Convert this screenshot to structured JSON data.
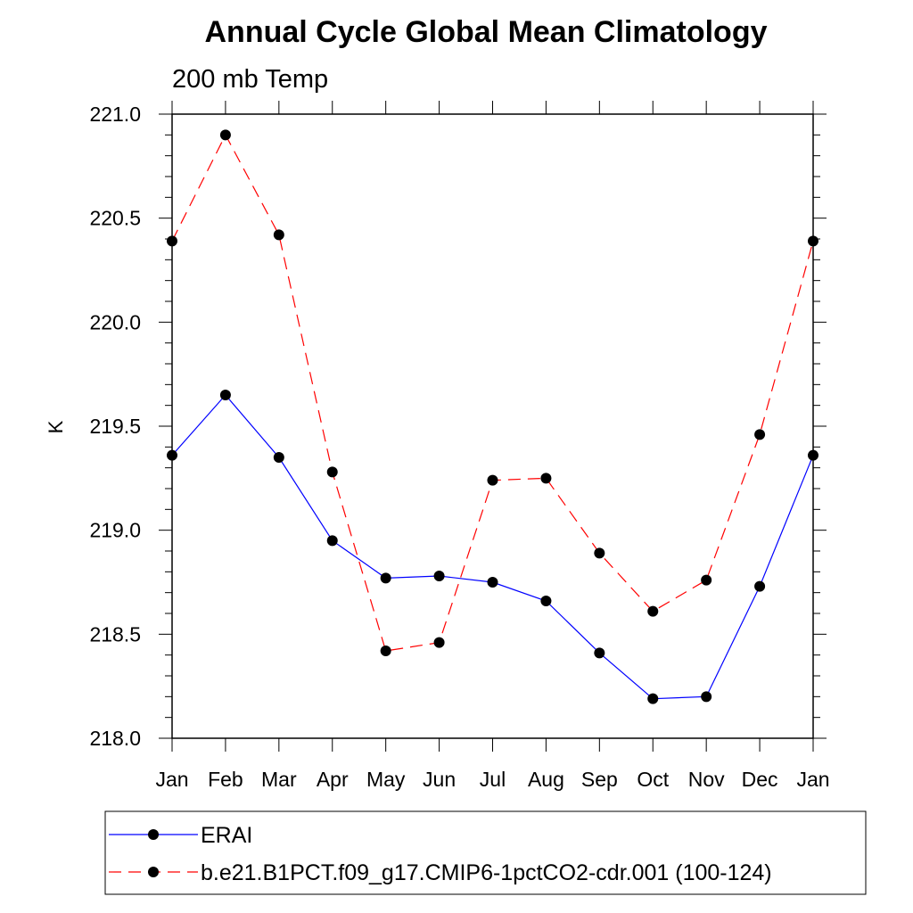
{
  "chart_data": {
    "type": "line",
    "title": "Annual Cycle Global Mean Climatology",
    "subtitle": "200 mb Temp",
    "ylabel": "K",
    "xlabel": "",
    "categories": [
      "Jan",
      "Feb",
      "Mar",
      "Apr",
      "May",
      "Jun",
      "Jul",
      "Aug",
      "Sep",
      "Oct",
      "Nov",
      "Dec",
      "Jan"
    ],
    "ylim": [
      218.0,
      221.0
    ],
    "yticks": [
      218.0,
      218.5,
      219.0,
      219.5,
      220.0,
      220.5,
      221.0
    ],
    "ytick_labels": [
      "218.0",
      "218.5",
      "219.0",
      "219.5",
      "220.0",
      "220.5",
      "221.0"
    ],
    "series": [
      {
        "name": "ERAI",
        "color": "#0000ff",
        "dash": "solid",
        "values": [
          219.36,
          219.65,
          219.35,
          218.95,
          218.77,
          218.78,
          218.75,
          218.66,
          218.41,
          218.19,
          218.2,
          218.73,
          219.36
        ]
      },
      {
        "name": "b.e21.B1PCT.f09_g17.CMIP6-1pctCO2-cdr.001 (100-124)",
        "color": "#ff0000",
        "dash": "dashed",
        "values": [
          220.39,
          220.9,
          220.42,
          219.28,
          218.42,
          218.46,
          219.24,
          219.25,
          218.89,
          218.61,
          218.76,
          219.46,
          220.39
        ]
      }
    ],
    "legend_position": "bottom"
  }
}
